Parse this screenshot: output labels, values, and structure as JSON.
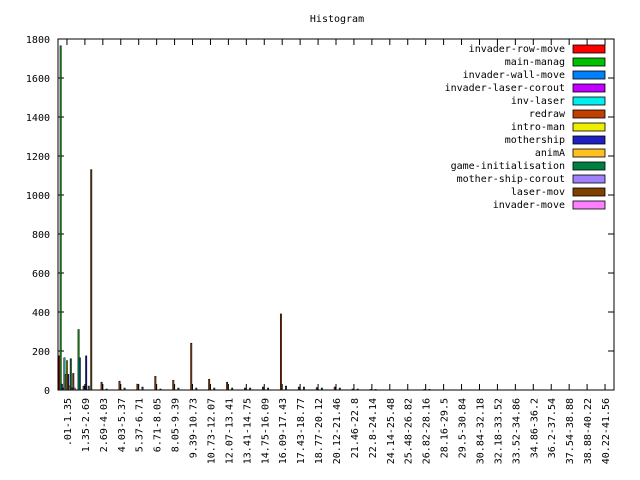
{
  "chart_data": {
    "type": "bar",
    "title": "Histogram",
    "xlabel": "",
    "ylabel": "",
    "ylim": [
      0,
      1800
    ],
    "yticks": [
      0,
      200,
      400,
      600,
      800,
      1000,
      1200,
      1400,
      1600,
      1800
    ],
    "grid": false,
    "legend_position": "top-right",
    "categories": [
      ".01-1.35",
      "1.35-2.69",
      "2.69-4.03",
      "4.03-5.37",
      "5.37-6.71",
      "6.71-8.05",
      "8.05-9.39",
      "9.39-10.73",
      "10.73-12.07",
      "12.07-13.41",
      "13.41-14.75",
      "14.75-16.09",
      "16.09-17.43",
      "17.43-18.77",
      "18.77-20.12",
      "20.12-21.46",
      "21.46-22.8",
      "22.8-24.14",
      "24.14-25.48",
      "25.48-26.82",
      "26.82-28.16",
      "28.16-29.5",
      "29.5-30.84",
      "30.84-32.18",
      "32.18-33.52",
      "33.52-34.86",
      "34.86-36.2",
      "36.2-37.54",
      "37.54-38.88",
      "38.88-40.22",
      "40.22-41.56"
    ],
    "series": [
      {
        "name": "invader-row-move",
        "color": "#ff0000",
        "values": [
          175,
          0,
          0,
          0,
          0,
          0,
          0,
          0,
          0,
          0,
          0,
          0,
          0,
          0,
          0,
          0,
          0,
          0,
          0,
          0,
          0,
          0,
          0,
          0,
          0,
          0,
          0,
          0,
          0,
          0,
          0
        ]
      },
      {
        "name": "main-manag",
        "color": "#00c000",
        "values": [
          1765,
          310,
          0,
          0,
          0,
          0,
          0,
          0,
          0,
          0,
          0,
          0,
          0,
          0,
          0,
          0,
          0,
          0,
          0,
          0,
          0,
          0,
          0,
          0,
          0,
          0,
          0,
          0,
          0,
          0,
          0
        ]
      },
      {
        "name": "invader-wall-move",
        "color": "#0080ff",
        "values": [
          30,
          165,
          0,
          0,
          0,
          0,
          0,
          0,
          0,
          0,
          0,
          0,
          0,
          0,
          0,
          0,
          0,
          0,
          0,
          0,
          0,
          0,
          0,
          0,
          0,
          0,
          0,
          0,
          0,
          0,
          0
        ]
      },
      {
        "name": "invader-laser-corout",
        "color": "#c000ff",
        "values": [
          10,
          0,
          0,
          0,
          0,
          0,
          0,
          0,
          0,
          0,
          0,
          0,
          0,
          0,
          0,
          0,
          0,
          0,
          0,
          0,
          0,
          0,
          0,
          0,
          0,
          0,
          0,
          0,
          0,
          0,
          0
        ]
      },
      {
        "name": "inv-laser",
        "color": "#00eeee",
        "values": [
          165,
          0,
          0,
          0,
          0,
          0,
          0,
          0,
          0,
          0,
          0,
          0,
          0,
          0,
          0,
          0,
          0,
          0,
          0,
          0,
          0,
          0,
          0,
          0,
          0,
          0,
          0,
          0,
          0,
          0,
          0
        ]
      },
      {
        "name": "redraw",
        "color": "#c04000",
        "values": [
          80,
          20,
          40,
          45,
          30,
          70,
          50,
          240,
          55,
          40,
          10,
          15,
          390,
          15,
          12,
          15,
          5,
          3,
          0,
          0,
          3,
          0,
          0,
          0,
          0,
          0,
          0,
          0,
          0,
          0,
          0
        ]
      },
      {
        "name": "intro-man",
        "color": "#eeee00",
        "values": [
          150,
          5,
          0,
          0,
          0,
          0,
          0,
          0,
          0,
          0,
          0,
          0,
          0,
          0,
          0,
          0,
          0,
          0,
          0,
          0,
          0,
          0,
          0,
          0,
          0,
          0,
          0,
          0,
          0,
          0,
          0
        ]
      },
      {
        "name": "mothership",
        "color": "#2020c0",
        "values": [
          80,
          175,
          0,
          0,
          0,
          0,
          0,
          0,
          0,
          0,
          0,
          0,
          0,
          0,
          0,
          0,
          0,
          0,
          0,
          0,
          0,
          0,
          0,
          0,
          0,
          0,
          0,
          0,
          0,
          0,
          0
        ]
      },
      {
        "name": "animA",
        "color": "#ffc020",
        "values": [
          20,
          0,
          0,
          0,
          0,
          0,
          0,
          0,
          0,
          0,
          0,
          0,
          0,
          0,
          0,
          0,
          0,
          0,
          0,
          0,
          0,
          0,
          0,
          0,
          0,
          0,
          0,
          0,
          0,
          0,
          0
        ]
      },
      {
        "name": "game-initialisation",
        "color": "#008040",
        "values": [
          160,
          20,
          5,
          10,
          15,
          5,
          10,
          10,
          10,
          10,
          10,
          10,
          20,
          15,
          10,
          10,
          5,
          3,
          0,
          0,
          3,
          0,
          0,
          0,
          0,
          0,
          0,
          0,
          0,
          0,
          0
        ]
      },
      {
        "name": "mother-ship-corout",
        "color": "#a080ff",
        "values": [
          10,
          0,
          0,
          0,
          0,
          0,
          0,
          0,
          0,
          0,
          0,
          0,
          0,
          0,
          0,
          0,
          0,
          0,
          0,
          0,
          0,
          0,
          0,
          0,
          0,
          0,
          0,
          0,
          0,
          0,
          0
        ]
      },
      {
        "name": "laser-mov",
        "color": "#804000",
        "values": [
          85,
          1130,
          0,
          0,
          0,
          0,
          0,
          0,
          0,
          0,
          0,
          0,
          0,
          0,
          0,
          0,
          0,
          0,
          0,
          0,
          0,
          0,
          0,
          0,
          0,
          0,
          0,
          0,
          0,
          0,
          0
        ]
      },
      {
        "name": "invader-move",
        "color": "#ff80ff",
        "values": [
          10,
          0,
          0,
          0,
          0,
          0,
          0,
          0,
          0,
          0,
          0,
          0,
          0,
          0,
          0,
          0,
          0,
          0,
          0,
          0,
          0,
          0,
          0,
          0,
          0,
          0,
          0,
          0,
          0,
          0,
          0
        ]
      }
    ]
  }
}
